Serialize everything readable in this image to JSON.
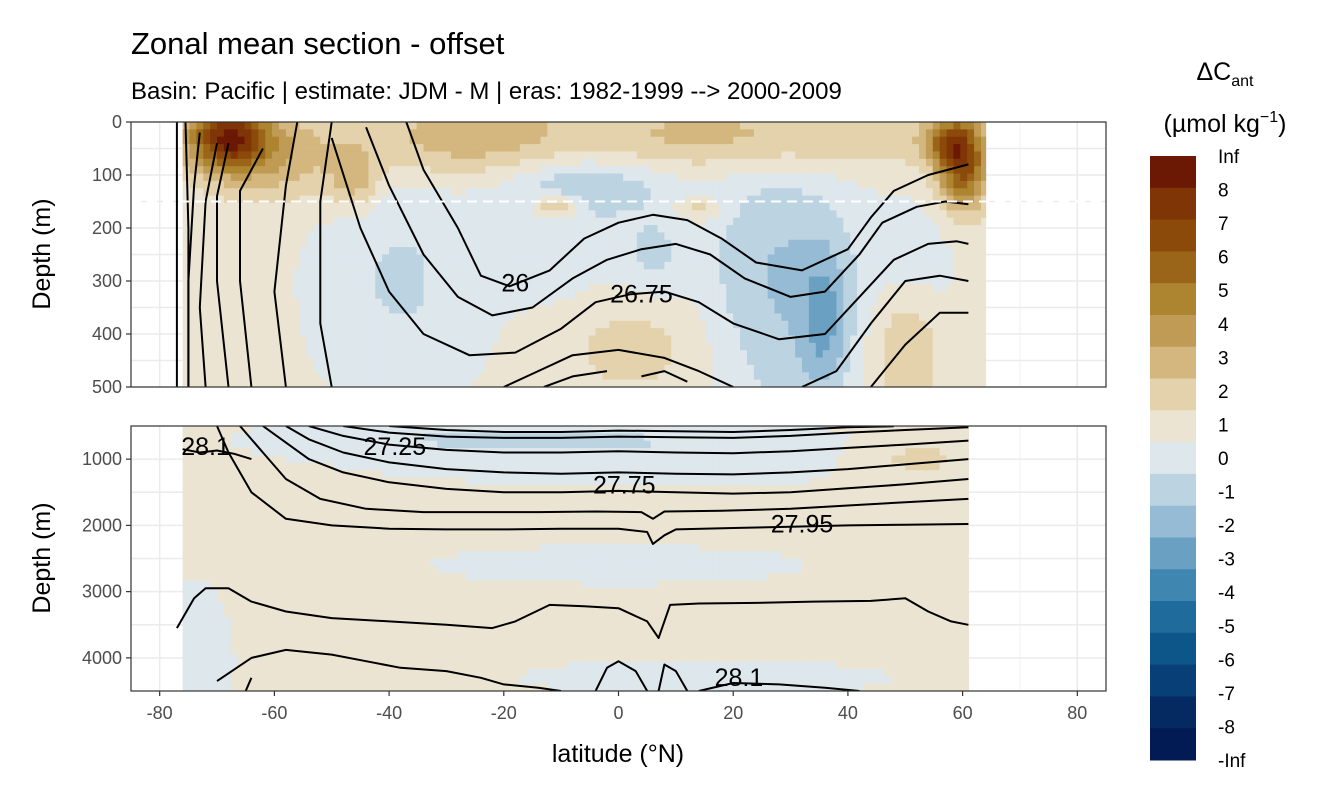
{
  "chart_data": {
    "type": "heatmap",
    "title": "Zonal mean section - offset",
    "subtitle": "Basin: Pacific | estimate: JDM - M | eras: 1982-1999 --> 2000-2009",
    "xlabel": "latitude (°N)",
    "ylabel": "Depth (m)",
    "xlim": [
      -85,
      85
    ],
    "x_ticks": [
      "-80",
      "-60",
      "-40",
      "-20",
      "0",
      "20",
      "40",
      "60",
      "80"
    ],
    "panels": [
      {
        "name": "upper",
        "ylim": [
          0,
          500
        ],
        "y_ticks": [
          "0",
          "100",
          "200",
          "300",
          "400",
          "500"
        ]
      },
      {
        "name": "lower",
        "ylim": [
          500,
          4500
        ],
        "y_ticks": [
          "1000",
          "2000",
          "3000",
          "4000"
        ]
      }
    ],
    "dashed_line_depth": 150,
    "data_lat_range": [
      -76,
      64
    ],
    "legend": {
      "title_main": "ΔC",
      "title_sub": "ant",
      "unit_main": "(µmol kg",
      "unit_sup": "−1",
      "unit_close": ")",
      "labels": [
        "Inf",
        "8",
        "7",
        "6",
        "5",
        "4",
        "3",
        "2",
        "1",
        "0",
        "-1",
        "-2",
        "-3",
        "-4",
        "-5",
        "-6",
        "-7",
        "-8",
        "-Inf"
      ],
      "colors": [
        "#6b1805",
        "#7f3506",
        "#8c4a0a",
        "#9a6419",
        "#ad842f",
        "#c09b55",
        "#d3b77f",
        "#e4d2ac",
        "#ece4d2",
        "#dde7ec",
        "#bcd3e2",
        "#96bbd4",
        "#6aa1c3",
        "#3f86b1",
        "#1f6b9b",
        "#0c568a",
        "#083f76",
        "#052a62",
        "#031b55"
      ]
    },
    "contour_labels": [
      {
        "text": "26",
        "lat": -18,
        "depth": 305
      },
      {
        "text": "26.75",
        "lat": 4,
        "depth": 325
      },
      {
        "text": "28.1",
        "lat": -72,
        "depth": 820
      },
      {
        "text": "27.25",
        "lat": -39,
        "depth": 820
      },
      {
        "text": "27.75",
        "lat": 1,
        "depth": 1400
      },
      {
        "text": "27.95",
        "lat": 32,
        "depth": 1990
      },
      {
        "text": "28.1",
        "lat": 21,
        "depth": 4300
      }
    ]
  }
}
